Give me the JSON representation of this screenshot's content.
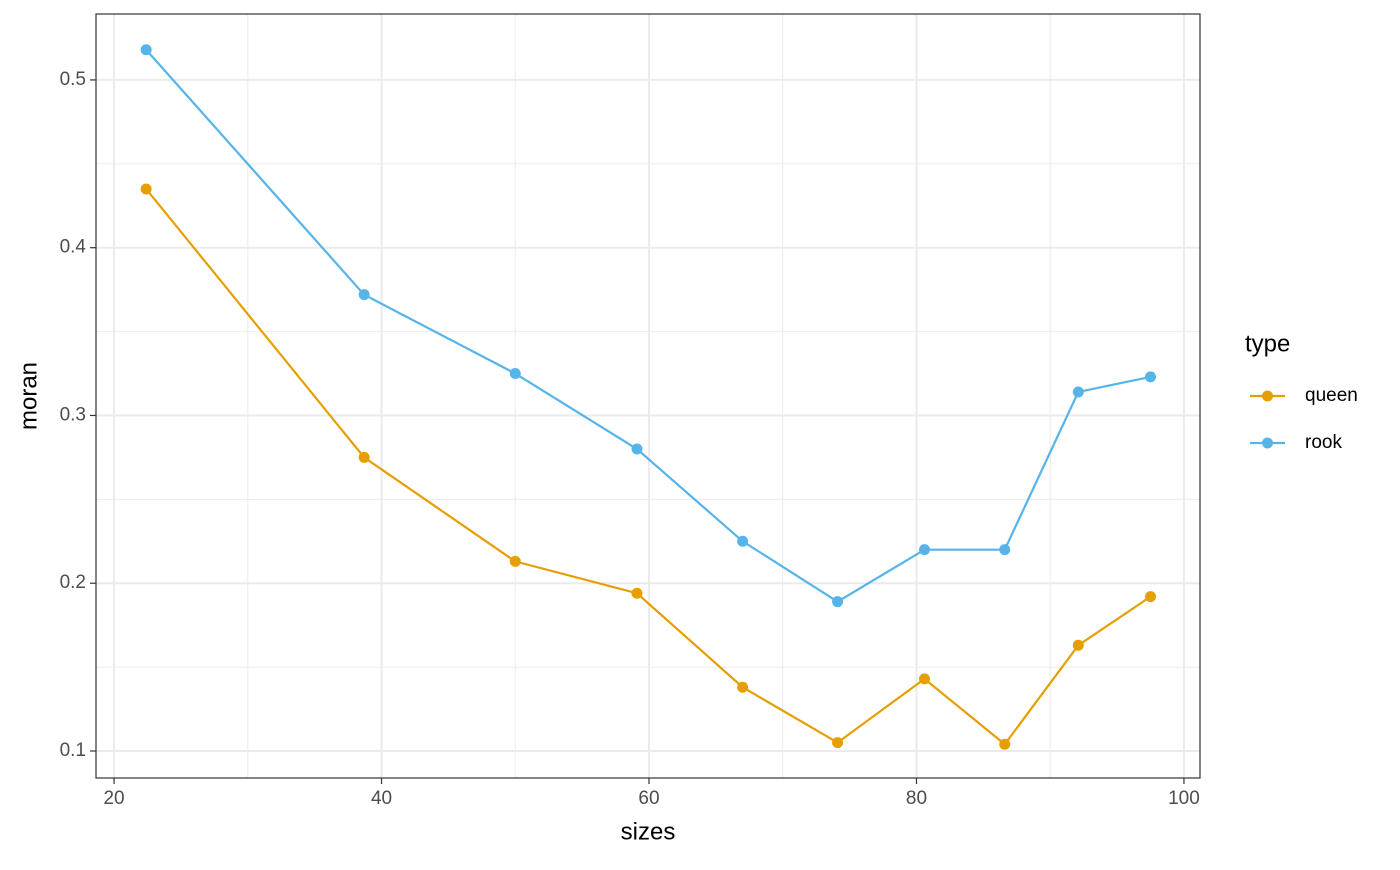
{
  "chart_data": {
    "type": "line",
    "x_label": "sizes",
    "y_label": "moran",
    "x": [
      22.4,
      38.7,
      50.0,
      59.1,
      67.0,
      74.1,
      80.6,
      86.6,
      92.1,
      97.5
    ],
    "series": [
      {
        "name": "queen",
        "color": "#E69F00",
        "values": [
          0.435,
          0.275,
          0.213,
          0.194,
          0.138,
          0.105,
          0.143,
          0.104,
          0.163,
          0.192
        ]
      },
      {
        "name": "rook",
        "color": "#56B4E9",
        "values": [
          0.518,
          0.372,
          0.325,
          0.28,
          0.225,
          0.189,
          0.22,
          0.22,
          0.314,
          0.323
        ]
      }
    ],
    "xlim": [
      18.65,
      101.2
    ],
    "xticks": [
      20,
      40,
      60,
      80,
      100
    ],
    "ylim": [
      0.0839,
      0.5393
    ],
    "yticks": [
      0.1,
      0.2,
      0.3,
      0.4,
      0.5
    ],
    "grid": true,
    "legend_title": "type",
    "legend_position": "right"
  }
}
